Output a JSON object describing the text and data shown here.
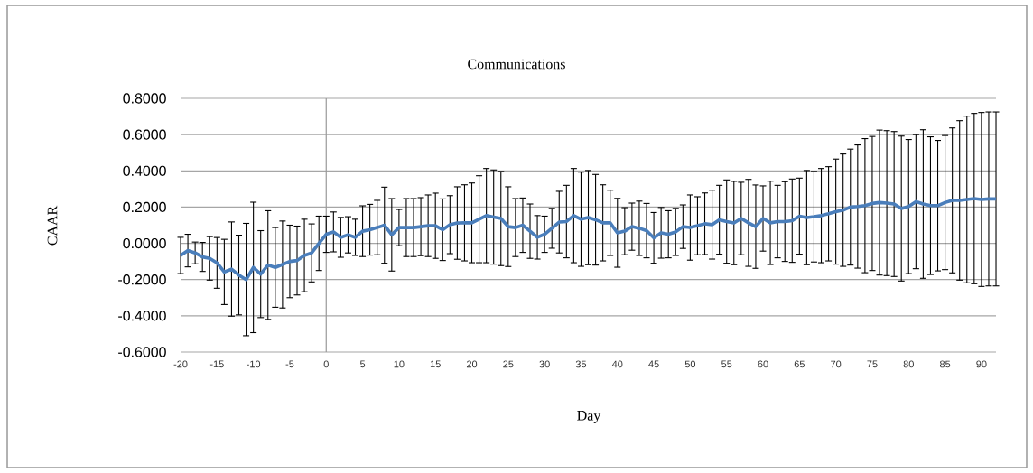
{
  "chart_data": {
    "type": "line",
    "title": "Communications",
    "xlabel": "Day",
    "ylabel": "CAAR",
    "x": [
      -20,
      -19,
      -18,
      -17,
      -16,
      -15,
      -14,
      -13,
      -12,
      -11,
      -10,
      -9,
      -8,
      -7,
      -6,
      -5,
      -4,
      -3,
      -2,
      -1,
      0,
      1,
      2,
      3,
      4,
      5,
      6,
      7,
      8,
      9,
      10,
      11,
      12,
      13,
      14,
      15,
      16,
      17,
      18,
      19,
      20,
      21,
      22,
      23,
      24,
      25,
      26,
      27,
      28,
      29,
      30,
      31,
      32,
      33,
      34,
      35,
      36,
      37,
      38,
      39,
      40,
      41,
      42,
      43,
      44,
      45,
      46,
      47,
      48,
      49,
      50,
      51,
      52,
      53,
      54,
      55,
      56,
      57,
      58,
      59,
      60,
      61,
      62,
      63,
      64,
      65,
      66,
      67,
      68,
      69,
      70,
      71,
      72,
      73,
      74,
      75,
      76,
      77,
      78,
      79,
      80,
      81,
      82,
      83,
      84,
      85,
      86,
      87,
      88,
      89,
      90,
      91,
      92
    ],
    "series": [
      {
        "color": "#4a7ebb",
        "values": [
          -0.067,
          -0.04,
          -0.053,
          -0.075,
          -0.083,
          -0.108,
          -0.158,
          -0.142,
          -0.175,
          -0.2,
          -0.133,
          -0.17,
          -0.12,
          -0.133,
          -0.117,
          -0.1,
          -0.095,
          -0.067,
          -0.053,
          0.0,
          0.05,
          0.063,
          0.033,
          0.047,
          0.033,
          0.067,
          0.075,
          0.087,
          0.1,
          0.047,
          0.087,
          0.087,
          0.087,
          0.092,
          0.097,
          0.097,
          0.075,
          0.103,
          0.112,
          0.113,
          0.113,
          0.133,
          0.153,
          0.145,
          0.137,
          0.092,
          0.087,
          0.1,
          0.067,
          0.033,
          0.05,
          0.083,
          0.117,
          0.12,
          0.153,
          0.133,
          0.142,
          0.13,
          0.113,
          0.113,
          0.058,
          0.067,
          0.092,
          0.083,
          0.07,
          0.03,
          0.058,
          0.05,
          0.063,
          0.092,
          0.087,
          0.097,
          0.108,
          0.103,
          0.13,
          0.12,
          0.112,
          0.137,
          0.113,
          0.092,
          0.137,
          0.113,
          0.12,
          0.12,
          0.125,
          0.15,
          0.142,
          0.147,
          0.153,
          0.163,
          0.175,
          0.183,
          0.2,
          0.203,
          0.208,
          0.22,
          0.225,
          0.222,
          0.217,
          0.192,
          0.203,
          0.23,
          0.217,
          0.208,
          0.208,
          0.225,
          0.237,
          0.237,
          0.242,
          0.247,
          0.242,
          0.245,
          0.245
        ],
        "errors": [
          0.1,
          0.09,
          0.06,
          0.08,
          0.12,
          0.14,
          0.18,
          0.26,
          0.22,
          0.31,
          0.36,
          0.24,
          0.3,
          0.22,
          0.24,
          0.2,
          0.19,
          0.2,
          0.16,
          0.15,
          0.1,
          0.11,
          0.11,
          0.1,
          0.1,
          0.14,
          0.14,
          0.15,
          0.21,
          0.2,
          0.1,
          0.16,
          0.16,
          0.16,
          0.17,
          0.18,
          0.17,
          0.16,
          0.2,
          0.21,
          0.22,
          0.24,
          0.26,
          0.26,
          0.26,
          0.22,
          0.16,
          0.15,
          0.15,
          0.12,
          0.1,
          0.11,
          0.17,
          0.2,
          0.26,
          0.26,
          0.26,
          0.25,
          0.21,
          0.18,
          0.19,
          0.13,
          0.13,
          0.15,
          0.15,
          0.14,
          0.14,
          0.13,
          0.13,
          0.12,
          0.18,
          0.16,
          0.17,
          0.19,
          0.19,
          0.23,
          0.23,
          0.2,
          0.24,
          0.23,
          0.18,
          0.23,
          0.2,
          0.22,
          0.23,
          0.21,
          0.26,
          0.25,
          0.26,
          0.26,
          0.29,
          0.31,
          0.32,
          0.34,
          0.37,
          0.37,
          0.4,
          0.4,
          0.4,
          0.4,
          0.37,
          0.37,
          0.41,
          0.38,
          0.36,
          0.37,
          0.4,
          0.44,
          0.46,
          0.47,
          0.48,
          0.48,
          0.48
        ]
      }
    ],
    "xlim": [
      -20,
      92
    ],
    "xticks": [
      -20,
      -15,
      -10,
      -5,
      0,
      5,
      10,
      15,
      20,
      25,
      30,
      35,
      40,
      45,
      50,
      55,
      60,
      65,
      70,
      75,
      80,
      85,
      90
    ],
    "ylim": [
      -0.6,
      0.8
    ],
    "yticks": [
      {
        "value": -0.6,
        "label": "-0.6000"
      },
      {
        "value": -0.4,
        "label": "-0.4000"
      },
      {
        "value": -0.2,
        "label": "-0.2000"
      },
      {
        "value": 0,
        "label": "0.0000"
      },
      {
        "value": 0.2,
        "label": "0.2000"
      },
      {
        "value": 0.4,
        "label": "0.4000"
      },
      {
        "value": 0.6,
        "label": "0.6000"
      },
      {
        "value": 0.8,
        "label": "0.8000"
      }
    ],
    "grid": "y"
  }
}
